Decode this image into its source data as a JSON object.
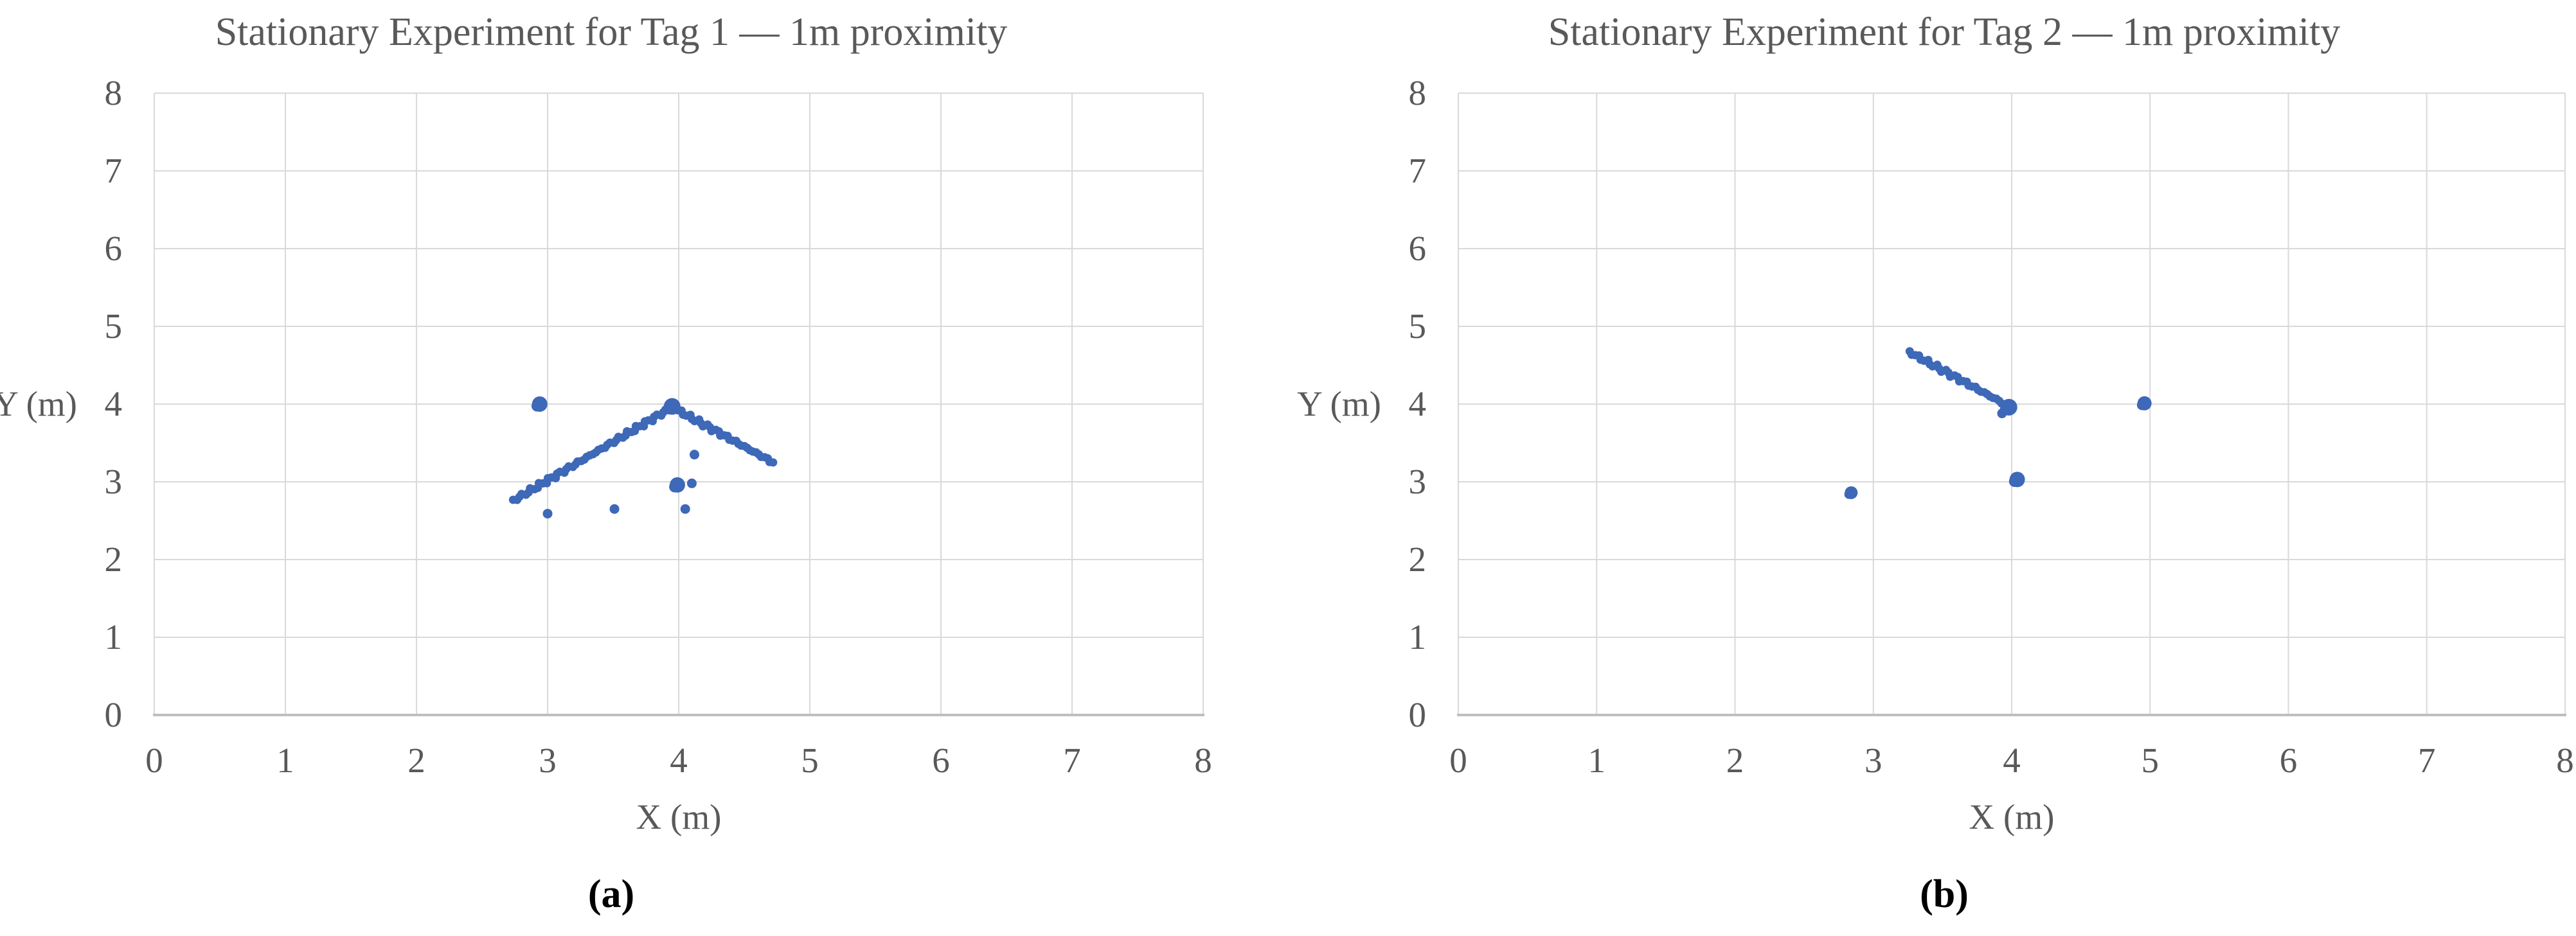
{
  "style": {
    "marker_color": "#3E68B8",
    "grid_color": "#D9D9D9",
    "axis_color": "#BFBFBF",
    "text_color": "#595959",
    "caption_color": "#000000",
    "background": "#FFFFFF"
  },
  "chart_data": [
    {
      "type": "scatter",
      "title": "Stationary Experiment for Tag 1 — 1m proximity",
      "caption": "(a)",
      "xlabel": "X (m)",
      "ylabel": "Y (m)",
      "xlim": [
        0,
        8
      ],
      "ylim": [
        0,
        8
      ],
      "xticks": [
        0,
        1,
        2,
        3,
        4,
        5,
        6,
        7,
        8
      ],
      "yticks": [
        0,
        1,
        2,
        3,
        4,
        5,
        6,
        7,
        8
      ],
      "grid": true,
      "legend": "none",
      "marker_color": "#3E68B8",
      "trails": [
        {
          "from": [
            2.74,
            2.76
          ],
          "to": [
            3.95,
            3.96
          ],
          "n": 55
        },
        {
          "from": [
            3.95,
            3.96
          ],
          "to": [
            4.72,
            3.25
          ],
          "n": 36
        }
      ],
      "clusters": [
        {
          "x": 2.94,
          "y": 4.0,
          "r": 12
        },
        {
          "x": 3.95,
          "y": 3.97,
          "r": 13
        },
        {
          "x": 3.99,
          "y": 2.96,
          "r": 12
        }
      ],
      "points": [
        [
          3.0,
          2.59
        ],
        [
          3.51,
          2.65
        ],
        [
          4.05,
          2.65
        ],
        [
          4.1,
          2.98
        ],
        [
          4.12,
          3.35
        ]
      ]
    },
    {
      "type": "scatter",
      "title": "Stationary Experiment for Tag 2 — 1m proximity",
      "caption": "(b)",
      "xlabel": "X (m)",
      "ylabel": "Y (m)",
      "xlim": [
        0,
        8
      ],
      "ylim": [
        0,
        8
      ],
      "xticks": [
        0,
        1,
        2,
        3,
        4,
        5,
        6,
        7,
        8
      ],
      "yticks": [
        0,
        1,
        2,
        3,
        4,
        5,
        6,
        7,
        8
      ],
      "grid": true,
      "legend": "none",
      "marker_color": "#3E68B8",
      "trails": [
        {
          "from": [
            3.26,
            4.67
          ],
          "to": [
            3.93,
            4.02
          ],
          "n": 32
        }
      ],
      "clusters": [
        {
          "x": 3.98,
          "y": 3.96,
          "r": 13
        },
        {
          "x": 4.04,
          "y": 3.03,
          "r": 12
        },
        {
          "x": 4.96,
          "y": 4.01,
          "r": 11
        },
        {
          "x": 2.84,
          "y": 2.86,
          "r": 10
        }
      ],
      "points": [
        [
          3.93,
          3.88
        ]
      ]
    }
  ]
}
